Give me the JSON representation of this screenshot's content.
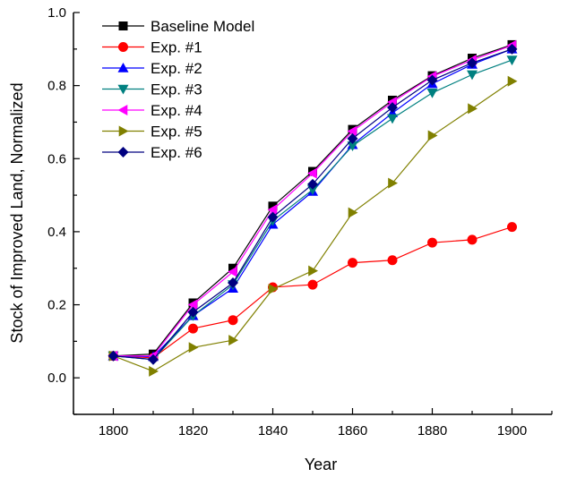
{
  "chart_data": {
    "type": "line",
    "title": "",
    "xlabel": "Year",
    "ylabel": "Stock of Improved Land, Normalized",
    "xlim": [
      1790,
      1910
    ],
    "ylim": [
      -0.1,
      1.0
    ],
    "xticks": [
      1800,
      1820,
      1840,
      1860,
      1880,
      1900
    ],
    "yticks": [
      0.0,
      0.2,
      0.4,
      0.6,
      0.8,
      1.0
    ],
    "ytick_labels": [
      "0.0",
      "0.2",
      "0.4",
      "0.6",
      "0.8",
      "1.0"
    ],
    "grid": false,
    "legend_position": "top-left",
    "x": [
      1800,
      1810,
      1820,
      1830,
      1840,
      1850,
      1860,
      1870,
      1880,
      1890,
      1900
    ],
    "series": [
      {
        "name": "Baseline Model",
        "color": "#000000",
        "marker": "square",
        "values": [
          0.06,
          0.065,
          0.205,
          0.3,
          0.47,
          0.565,
          0.68,
          0.76,
          0.827,
          0.875,
          0.912
        ]
      },
      {
        "name": "Exp. #1",
        "color": "#ff0000",
        "marker": "circle",
        "values": [
          0.06,
          0.055,
          0.135,
          0.158,
          0.248,
          0.255,
          0.315,
          0.322,
          0.37,
          0.378,
          0.413
        ]
      },
      {
        "name": "Exp. #2",
        "color": "#0000ff",
        "marker": "triangle-up",
        "values": [
          0.06,
          0.058,
          0.17,
          0.245,
          0.42,
          0.51,
          0.638,
          0.725,
          0.805,
          0.858,
          0.9
        ]
      },
      {
        "name": "Exp. #3",
        "color": "#008080",
        "marker": "triangle-down",
        "values": [
          0.06,
          0.05,
          0.17,
          0.255,
          0.43,
          0.515,
          0.635,
          0.71,
          0.78,
          0.83,
          0.87
        ]
      },
      {
        "name": "Exp. #4",
        "color": "#ff00ff",
        "marker": "triangle-left",
        "values": [
          0.06,
          0.06,
          0.2,
          0.29,
          0.46,
          0.56,
          0.675,
          0.755,
          0.825,
          0.87,
          0.91
        ]
      },
      {
        "name": "Exp. #5",
        "color": "#808000",
        "marker": "triangle-right",
        "values": [
          0.06,
          0.018,
          0.083,
          0.103,
          0.243,
          0.293,
          0.452,
          0.533,
          0.663,
          0.737,
          0.812
        ]
      },
      {
        "name": "Exp. #6",
        "color": "#000080",
        "marker": "diamond",
        "values": [
          0.06,
          0.05,
          0.18,
          0.26,
          0.44,
          0.53,
          0.655,
          0.74,
          0.815,
          0.862,
          0.9
        ]
      }
    ]
  }
}
